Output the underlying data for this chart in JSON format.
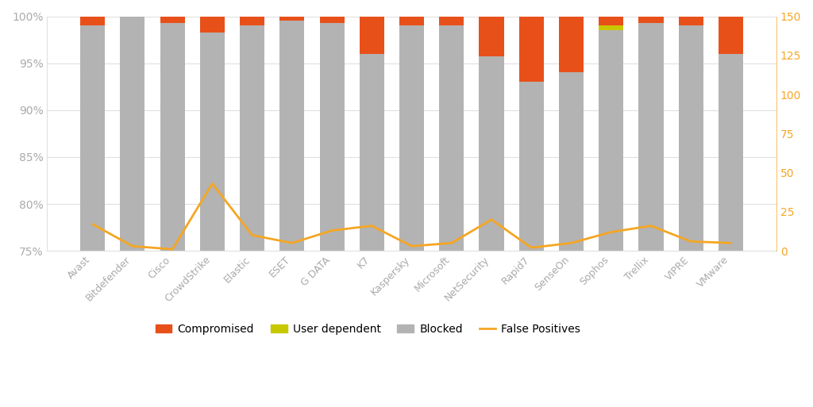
{
  "categories": [
    "Avast",
    "Bitdefender",
    "Cisco",
    "CrowdStrike",
    "Elastic",
    "ESET",
    "G DATA",
    "K7",
    "Kaspersky",
    "Microsoft",
    "NetSecurity",
    "Rapid7",
    "SenseOn",
    "Sophos",
    "Trellix",
    "VIPRE",
    "VMware"
  ],
  "blocked": [
    99.0,
    100.0,
    99.3,
    98.3,
    99.0,
    99.5,
    99.3,
    96.0,
    99.0,
    99.0,
    95.7,
    93.0,
    94.0,
    98.5,
    99.3,
    99.0,
    96.0
  ],
  "compromised": [
    1.0,
    0.0,
    0.7,
    1.7,
    1.0,
    0.5,
    0.7,
    4.0,
    1.0,
    1.0,
    4.3,
    7.0,
    6.0,
    1.0,
    0.7,
    1.0,
    4.0
  ],
  "user_dependent": [
    0.0,
    0.0,
    0.0,
    0.0,
    0.0,
    0.0,
    0.0,
    0.0,
    0.0,
    0.0,
    0.0,
    0.0,
    0.0,
    0.5,
    0.0,
    0.0,
    0.0
  ],
  "false_positives": [
    17,
    3,
    1,
    43,
    10,
    5,
    13,
    16,
    3,
    5,
    20,
    2,
    5,
    12,
    16,
    6,
    5
  ],
  "blocked_color": "#b3b3b3",
  "compromised_color": "#e8501a",
  "user_dependent_color": "#c8c800",
  "false_positives_color": "#f5a623",
  "background_color": "#ffffff",
  "axis_label_color": "#aaaaaa",
  "grid_color": "#e0e0e0",
  "ylim_left": [
    75,
    100
  ],
  "ylim_right": [
    0,
    150
  ],
  "yticks_left": [
    75,
    80,
    85,
    90,
    95,
    100
  ],
  "yticks_right": [
    0,
    25,
    50,
    75,
    100,
    125,
    150
  ],
  "legend_labels": [
    "Compromised",
    "User dependent",
    "Blocked",
    "False Positives"
  ]
}
